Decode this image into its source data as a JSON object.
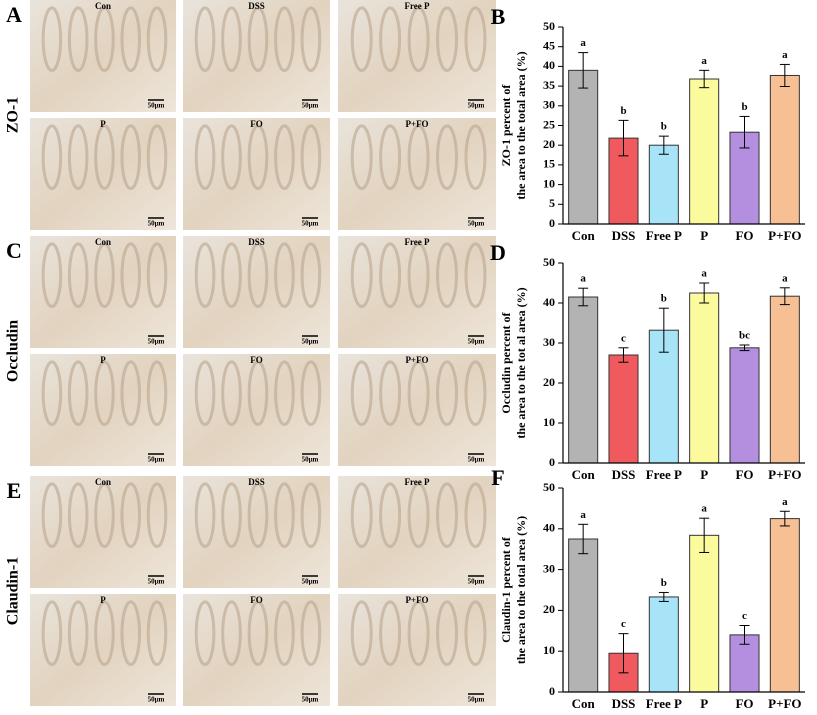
{
  "panels": [
    {
      "letter": "A",
      "label": "ZO-1",
      "images": [
        "Con",
        "DSS",
        "Free P",
        "P",
        "FO",
        "P+FO"
      ],
      "scale": "50μm"
    },
    {
      "letter": "C",
      "label": "Occludin",
      "images": [
        "Con",
        "DSS",
        "Free P",
        "P",
        "FO",
        "P+FO"
      ],
      "scale": "50μm"
    },
    {
      "letter": "E",
      "label": "Claudin-1",
      "images": [
        "Con",
        "DSS",
        "Free P",
        "P",
        "FO",
        "P+FO"
      ],
      "scale": "50μm"
    }
  ],
  "chart_data": [
    {
      "type": "bar",
      "letter": "B",
      "ylabel": [
        "ZO-1 percent of",
        "the area to the total area (%)"
      ],
      "categories": [
        "Con",
        "DSS",
        "Free P",
        "P",
        "FO",
        "P+FO"
      ],
      "values": [
        39,
        21.8,
        20,
        36.8,
        23.3,
        37.7
      ],
      "errors": [
        4.5,
        4.5,
        2.3,
        2.2,
        4,
        2.8
      ],
      "sig_letters": [
        "a",
        "b",
        "b",
        "a",
        "b",
        "a"
      ],
      "colors": [
        "#b3b3b3",
        "#f05a5e",
        "#a8e4f8",
        "#fbfb9e",
        "#b48fdf",
        "#f7bf94"
      ],
      "ylim": [
        0,
        50
      ],
      "yticks": [
        0,
        5,
        10,
        15,
        20,
        25,
        30,
        35,
        40,
        45,
        50
      ]
    },
    {
      "type": "bar",
      "letter": "D",
      "ylabel": [
        "Occludin percent of",
        "the area to the tot al area (%)"
      ],
      "categories": [
        "Con",
        "DSS",
        "Free P",
        "P",
        "FO",
        "P+FO"
      ],
      "values": [
        41.5,
        27,
        33.2,
        42.5,
        28.8,
        41.7
      ],
      "errors": [
        2.2,
        1.8,
        5.5,
        2.5,
        0.7,
        2.1
      ],
      "sig_letters": [
        "a",
        "c",
        "b",
        "a",
        "bc",
        "a"
      ],
      "colors": [
        "#b3b3b3",
        "#f05a5e",
        "#a8e4f8",
        "#fbfb9e",
        "#b48fdf",
        "#f7bf94"
      ],
      "ylim": [
        0,
        50
      ],
      "yticks": [
        0,
        10,
        20,
        30,
        40,
        50
      ]
    },
    {
      "type": "bar",
      "letter": "F",
      "ylabel": [
        "Claudin-1 percent of",
        "the area to the total area (%)"
      ],
      "categories": [
        "Con",
        "DSS",
        "Free P",
        "P",
        "FO",
        "P+FO"
      ],
      "values": [
        37.5,
        9.5,
        23.3,
        38.4,
        14,
        42.5
      ],
      "errors": [
        3.6,
        4.8,
        1.1,
        4.2,
        2.3,
        1.8
      ],
      "sig_letters": [
        "a",
        "c",
        "b",
        "a",
        "c",
        "a"
      ],
      "colors": [
        "#b3b3b3",
        "#f05a5e",
        "#a8e4f8",
        "#fbfb9e",
        "#b48fdf",
        "#f7bf94"
      ],
      "ylim": [
        0,
        50
      ],
      "yticks": [
        0,
        10,
        20,
        30,
        40,
        50
      ]
    }
  ]
}
